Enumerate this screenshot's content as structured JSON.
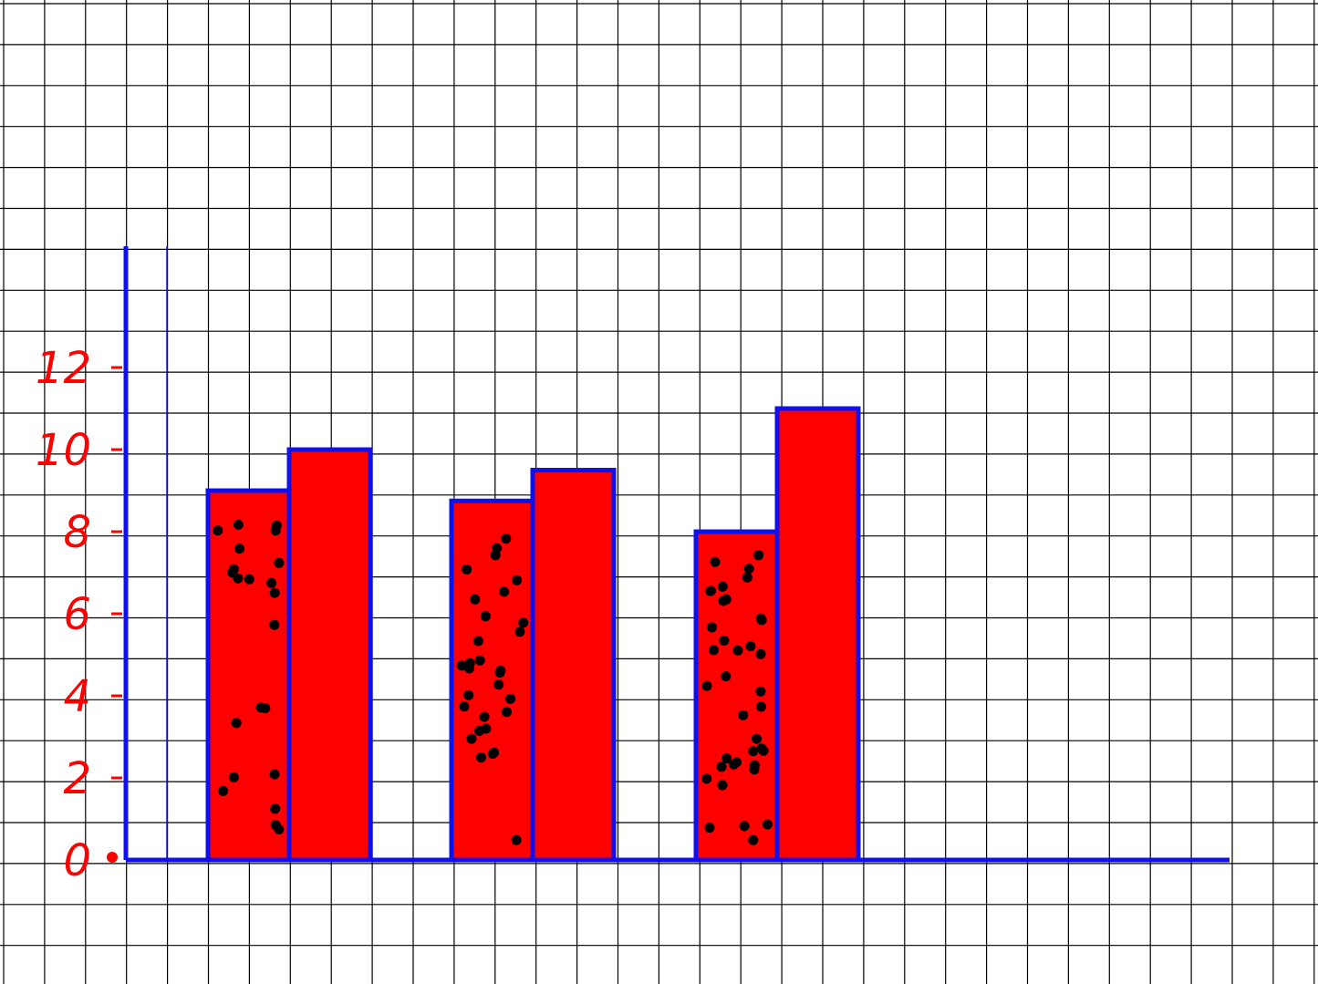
{
  "chart_data": {
    "type": "bar",
    "title": "",
    "xlabel": "",
    "ylabel": "",
    "ylim": [
      0,
      12
    ],
    "y_ticks": [
      "0",
      "2",
      "4",
      "6",
      "8",
      "10",
      "12"
    ],
    "grid": true,
    "categories": [
      "",
      "",
      ""
    ],
    "series": [
      {
        "pattern": "dotted",
        "values": [
          9,
          8.75,
          8
        ]
      },
      {
        "pattern": "solid",
        "values": [
          10,
          9.5,
          11
        ]
      }
    ],
    "colors": {
      "bar_fill": "#ff0000",
      "bar_outline": "#1010ee",
      "axis": "#1010ee",
      "tick_label": "#ff0000",
      "dots": "#000000",
      "grid": "#000000"
    }
  }
}
